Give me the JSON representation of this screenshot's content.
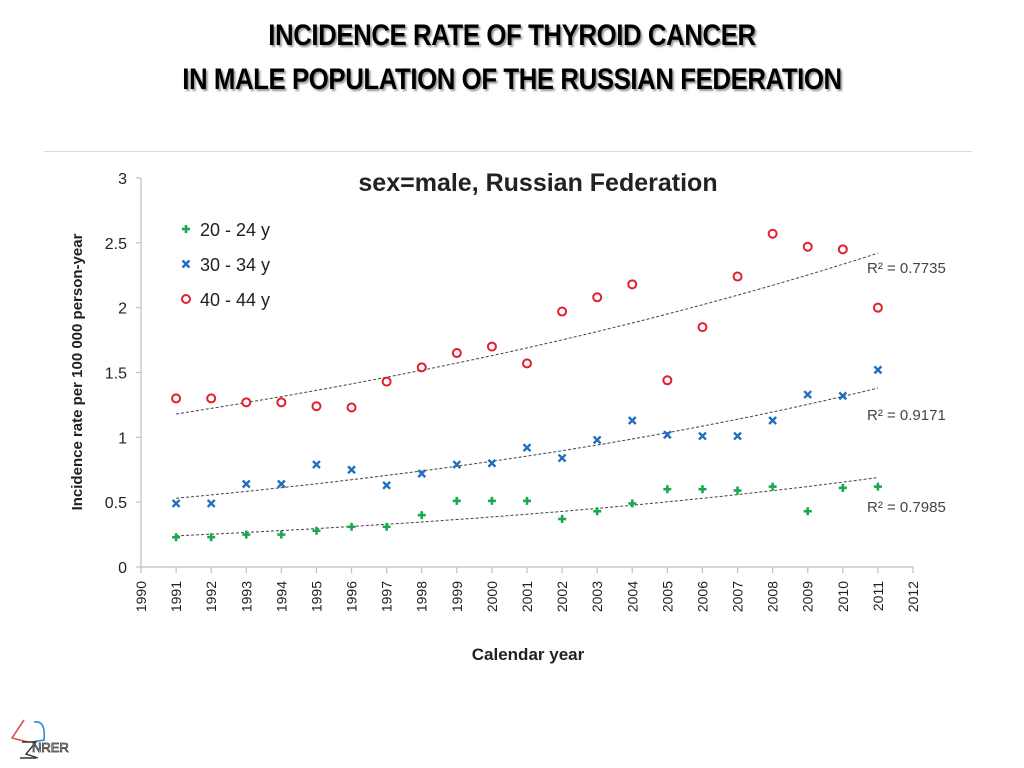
{
  "slide": {
    "title_line1": "INCIDENCE RATE OF THYROID CANCER",
    "title_line2": "IN MALE POPULATION OF THE RUSSIAN FEDERATION",
    "logo_text": "NRER"
  },
  "chart_data": {
    "type": "scatter",
    "title": "sex=male, Russian Federation",
    "xlabel": "Calendar year",
    "ylabel": "Incidence rate per 100 000 person-year",
    "xlim": [
      1990,
      2012
    ],
    "ylim": [
      0,
      3
    ],
    "xticks": [
      1990,
      1991,
      1992,
      1993,
      1994,
      1995,
      1996,
      1997,
      1998,
      1999,
      2000,
      2001,
      2002,
      2003,
      2004,
      2005,
      2006,
      2007,
      2008,
      2009,
      2010,
      2011,
      2012
    ],
    "yticks": [
      0,
      0.5,
      1,
      1.5,
      2,
      2.5,
      3
    ],
    "ytick_labels": [
      "0",
      "0.5",
      "1",
      "1.5",
      "2",
      "2.5",
      "3"
    ],
    "grid": false,
    "legend_position": "top-left",
    "x": [
      1991,
      1992,
      1993,
      1994,
      1995,
      1996,
      1997,
      1998,
      1999,
      2000,
      2001,
      2002,
      2003,
      2004,
      2005,
      2006,
      2007,
      2008,
      2009,
      2010,
      2011
    ],
    "series": [
      {
        "name": "20 - 24 y",
        "marker": "plus",
        "color": "#1aa84e",
        "values": [
          0.23,
          0.23,
          0.25,
          0.25,
          0.28,
          0.31,
          0.31,
          0.4,
          0.51,
          0.51,
          0.51,
          0.37,
          0.43,
          0.49,
          0.6,
          0.6,
          0.59,
          0.62,
          0.43,
          0.61,
          0.62
        ],
        "trendline": {
          "type": "exponential",
          "start": 0.24,
          "end": 0.69,
          "r2_label": "R² = 0.7985"
        }
      },
      {
        "name": "30 - 34 y",
        "marker": "x",
        "color": "#1f6fc0",
        "values": [
          0.49,
          0.49,
          0.64,
          0.64,
          0.79,
          0.75,
          0.63,
          0.72,
          0.79,
          0.8,
          0.92,
          0.84,
          0.98,
          1.13,
          1.02,
          1.01,
          1.01,
          1.13,
          1.33,
          1.32,
          1.52
        ],
        "trendline": {
          "type": "exponential",
          "start": 0.53,
          "end": 1.38,
          "r2_label": "R² = 0.9171"
        }
      },
      {
        "name": "40 - 44 y",
        "marker": "circle",
        "color": "#e0202e",
        "values": [
          1.3,
          1.3,
          1.27,
          1.27,
          1.24,
          1.23,
          1.43,
          1.54,
          1.65,
          1.7,
          1.57,
          1.97,
          2.08,
          2.18,
          1.44,
          1.85,
          2.24,
          2.57,
          2.47,
          2.45,
          2.0
        ],
        "trendline": {
          "type": "exponential",
          "start": 1.18,
          "end": 2.42,
          "r2_label": "R² = 0.7735"
        }
      }
    ]
  }
}
